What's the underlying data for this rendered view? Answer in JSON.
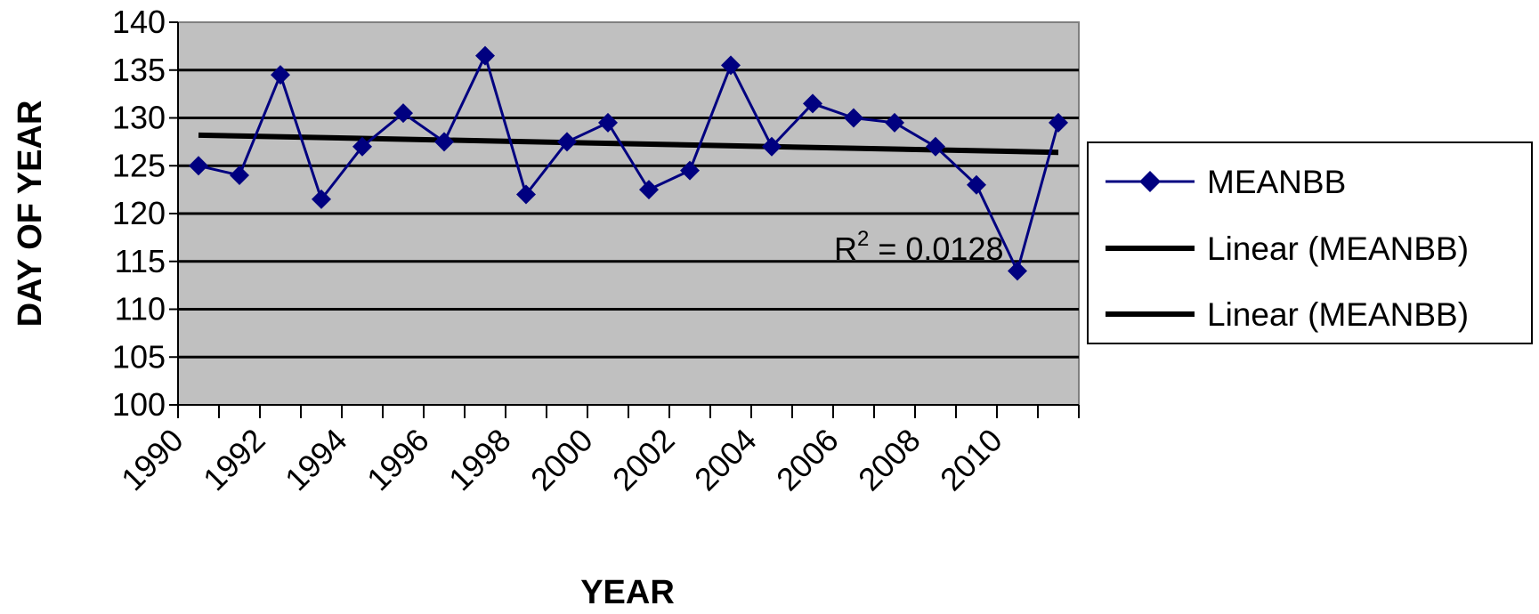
{
  "chart_data": {
    "type": "line",
    "xlabel": "YEAR",
    "ylabel": "DAY OF YEAR",
    "ylim": [
      100,
      140
    ],
    "yticks": [
      100,
      105,
      110,
      115,
      120,
      125,
      130,
      135,
      140
    ],
    "xlim": [
      1990,
      2012
    ],
    "xtick_labels": [
      "1990",
      "1992",
      "1994",
      "1996",
      "1998",
      "2000",
      "2002",
      "2004",
      "2006",
      "2008",
      "2010"
    ],
    "grid": true,
    "legend_position": "right",
    "series": [
      {
        "name": "MEANBB",
        "color": "#000080",
        "marker": "diamond",
        "x": [
          1990,
          1991,
          1992,
          1993,
          1994,
          1995,
          1996,
          1997,
          1998,
          1999,
          2000,
          2001,
          2002,
          2003,
          2004,
          2005,
          2006,
          2007,
          2008,
          2009,
          2010,
          2011
        ],
        "y": [
          125,
          124,
          134.5,
          121.5,
          127,
          130.5,
          127.5,
          136.5,
          122,
          127.5,
          129.5,
          122.5,
          124.5,
          135.5,
          127,
          131.5,
          130,
          129.5,
          127,
          123,
          114,
          129.5
        ]
      },
      {
        "name": "Linear (MEANBB)",
        "color": "#000000",
        "x": [
          1990,
          2011
        ],
        "y": [
          128.2,
          126.4
        ]
      },
      {
        "name": "Linear (MEANBB)",
        "color": "#000000",
        "x": [
          1990,
          2011
        ],
        "y": [
          128.2,
          126.4
        ]
      }
    ],
    "annotations": [
      {
        "text_base": "R",
        "text_sup": "2",
        "text_rest": " = 0.0128"
      }
    ]
  },
  "colors": {
    "plot_background": "#c0c0c0",
    "grid": "#000000",
    "series_line": "#000080",
    "trend_line": "#000000"
  }
}
